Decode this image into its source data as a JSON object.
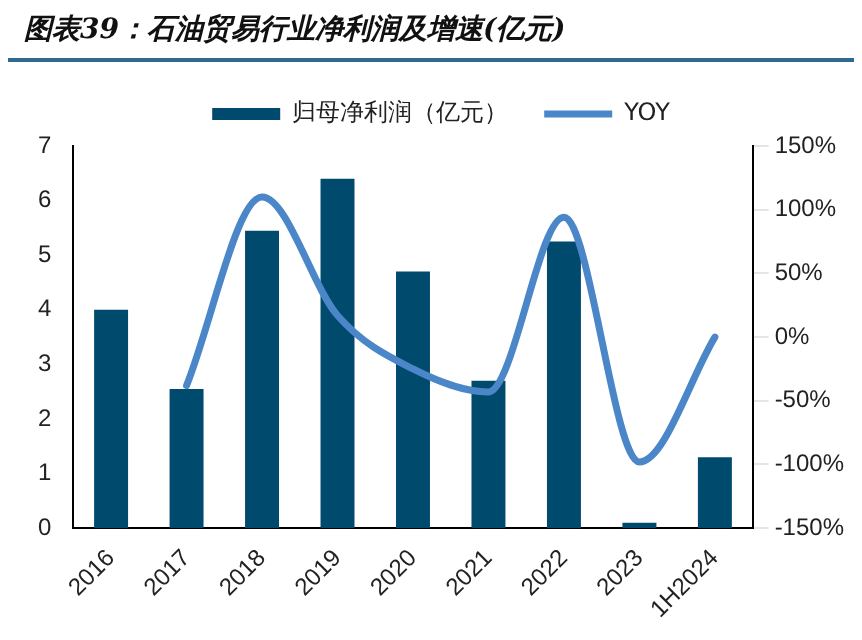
{
  "chart_data": {
    "type": "bar",
    "title": "图表39：石油贸易行业净利润及增速(亿元)",
    "categories": [
      "2016",
      "2017",
      "2018",
      "2019",
      "2020",
      "2021",
      "2022",
      "2023",
      "1H2024"
    ],
    "series": [
      {
        "name": "归母净利润（亿元）",
        "color": "#004a6e",
        "values": [
          4.0,
          2.55,
          5.45,
          6.4,
          4.7,
          2.7,
          5.25,
          0.1,
          1.3
        ]
      },
      {
        "name": "YOY",
        "type": "line",
        "axis": "y2",
        "color": "#4a86c8",
        "marker": "none",
        "line_style": "solid",
        "values": [
          null,
          -38,
          110,
          17,
          -25,
          -43,
          94,
          -98,
          0
        ]
      }
    ],
    "ylim": [
      0,
      7
    ],
    "yticks": [
      0,
      1,
      2,
      3,
      4,
      5,
      6,
      7
    ],
    "y2lim": [
      -150,
      150
    ],
    "y2ticks": [
      {
        "value": -150,
        "label": "-150%"
      },
      {
        "value": -100,
        "label": "-100%"
      },
      {
        "value": -50,
        "label": "-50%"
      },
      {
        "value": 0,
        "label": "0%"
      },
      {
        "value": 50,
        "label": "50%"
      },
      {
        "value": 100,
        "label": "100%"
      },
      {
        "value": 150,
        "label": "150%"
      }
    ],
    "grid": false,
    "legend": "top"
  }
}
